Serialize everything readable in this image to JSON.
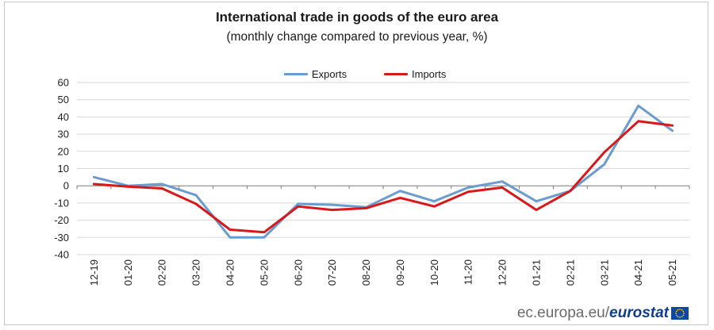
{
  "chart_data": {
    "type": "line",
    "title": "International trade in goods of the euro area",
    "subtitle": "(monthly change compared to previous year, %)",
    "categories": [
      "12-19",
      "01-20",
      "02-20",
      "03-20",
      "04-20",
      "05-20",
      "06-20",
      "07-20",
      "08-20",
      "09-20",
      "10-20",
      "11-20",
      "12-20",
      "01-21",
      "02-21",
      "03-21",
      "04-21",
      "05-21"
    ],
    "series": [
      {
        "name": "Exports",
        "color": "#6a9ccf",
        "values": [
          5,
          0,
          1,
          -5.5,
          -30,
          -30,
          -10.5,
          -11,
          -12.5,
          -3,
          -9,
          -1,
          2.5,
          -9,
          -3,
          12.5,
          46.5,
          32
        ]
      },
      {
        "name": "Imports",
        "color": "#d7191c",
        "values": [
          1,
          -0.5,
          -1.5,
          -10.5,
          -25.5,
          -27,
          -12,
          -14,
          -13,
          -7,
          -12,
          -3.5,
          -1,
          -14,
          -3,
          19.5,
          37.5,
          35
        ]
      }
    ],
    "ylim": [
      -40,
      60
    ],
    "yticks": [
      60,
      50,
      40,
      30,
      20,
      10,
      0,
      -10,
      -20,
      -30,
      -40
    ],
    "grid": true,
    "legend_position": "top"
  },
  "footer": {
    "source_text": "ec.europa.eu/",
    "brand": "eurostat"
  }
}
